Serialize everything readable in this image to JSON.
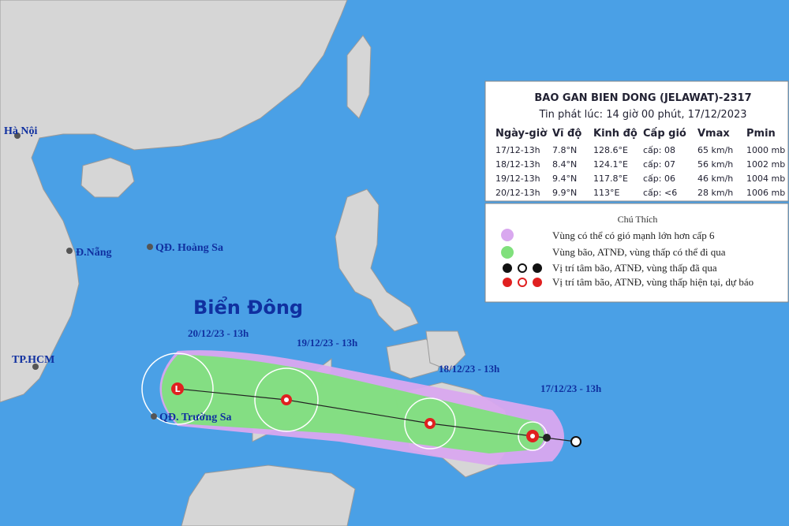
{
  "header": {
    "title": "BAO GAN BIEN DONG (JELAWAT)-2317",
    "issued": "Tin phát lúc: 14 giờ 00 phút, 17/12/2023"
  },
  "table": {
    "columns": [
      "Ngày-giờ",
      "Vĩ độ",
      "Kinh độ",
      "Cấp gió",
      "Vmax",
      "Pmin"
    ],
    "rows": [
      [
        "17/12-13h",
        "7.8°N",
        "128.6°E",
        "cấp: 08",
        "65 km/h",
        "1000 mb"
      ],
      [
        "18/12-13h",
        "8.4°N",
        "124.1°E",
        "cấp: 07",
        "56 km/h",
        "1002 mb"
      ],
      [
        "19/12-13h",
        "9.4°N",
        "117.8°E",
        "cấp: 06",
        "46 km/h",
        "1004 mb"
      ],
      [
        "20/12-13h",
        "9.9°N",
        "113°E",
        "cấp: <6",
        "28 km/h",
        "1006 mb"
      ]
    ]
  },
  "legend": {
    "title": "Chú Thích",
    "items": [
      "Vùng có thể có gió mạnh lớn hơn cấp 6",
      "Vùng bão, ATNĐ, vùng thấp có thể đi qua",
      "Vị trí tâm bão, ATNĐ, vùng thấp đã qua",
      "Vị trí tâm bão, ATNĐ, vùng thấp hiện tại, dự báo"
    ]
  },
  "places": [
    "Hà Nội",
    "Đ.Nẵng",
    "QĐ. Hoàng Sa",
    "TP.HCM",
    "QĐ. Trường Sa"
  ],
  "sea_label": "Biển Đông",
  "track_labels": [
    "20/12/23 - 13h",
    "19/12/23 - 13h",
    "18/12/23 - 13h",
    "17/12/23 - 13h"
  ]
}
